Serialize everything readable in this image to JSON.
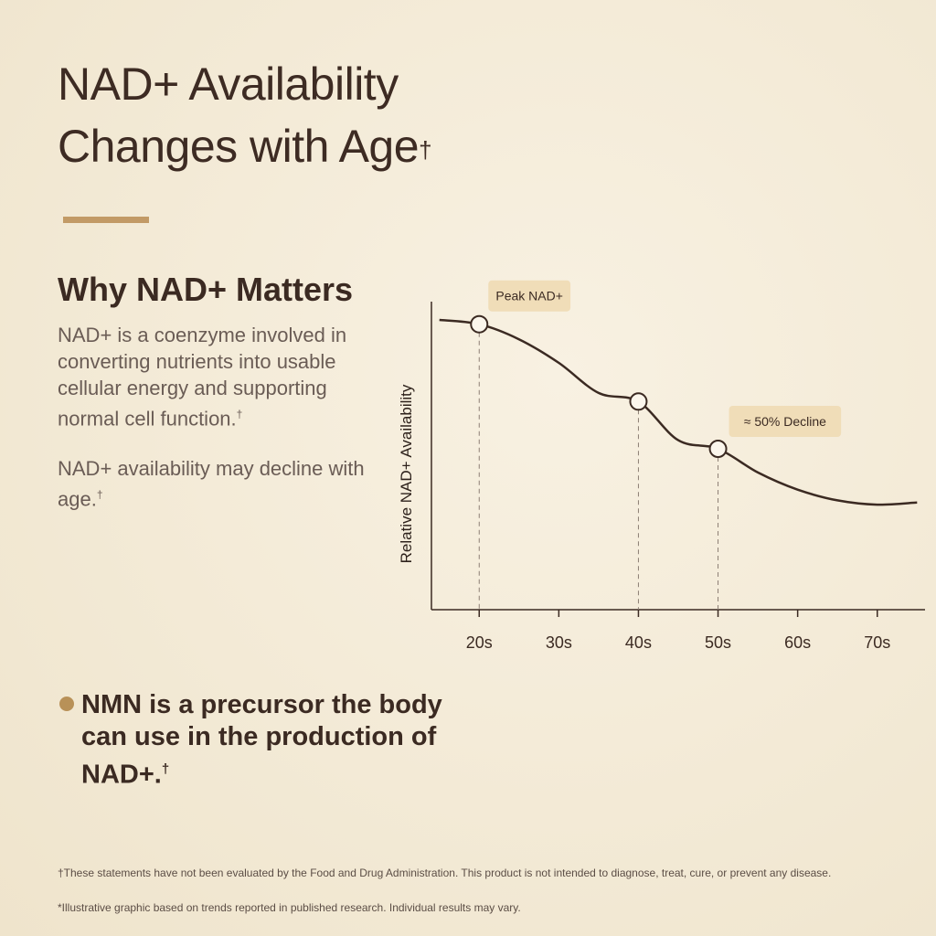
{
  "header": {
    "title_line1": "NAD+ Availability",
    "title_line2": "Changes with Age",
    "title_mark": "†"
  },
  "info": {
    "heading": "Why NAD+ Matters",
    "para1": "NAD+ is a coenzyme involved in converting nutrients into usable cellular energy and supporting normal cell function.",
    "para1_mark": "†",
    "para2": "NAD+ availability may decline with age.",
    "para2_mark": "†"
  },
  "callout": {
    "text": "NMN is a precursor the body can use in the production of NAD+.",
    "mark": "†"
  },
  "footnotes": {
    "fda": "†These statements have not been evaluated by the Food and Drug Administration. This product is not intended to diagnose, treat, cure, or prevent any disease.",
    "illustrative": "*Illustrative graphic based on trends reported in published research. Individual results may vary."
  },
  "colors": {
    "line": "#3b2a22",
    "accent": "#c29a66",
    "annotation_bg": "#f0ddb8"
  },
  "chart_data": {
    "type": "line",
    "title": "",
    "xlabel": "",
    "ylabel": "Relative NAD+ Availability",
    "categories": [
      "20s",
      "30s",
      "40s",
      "50s",
      "60s",
      "70s"
    ],
    "x_range": [
      14,
      76
    ],
    "y_range": [
      0,
      100
    ],
    "curve": [
      {
        "x": 15,
        "y": 100
      },
      {
        "x": 20,
        "y": 98
      },
      {
        "x": 25,
        "y": 91
      },
      {
        "x": 30,
        "y": 80
      },
      {
        "x": 35,
        "y": 66
      },
      {
        "x": 40,
        "y": 62
      },
      {
        "x": 45,
        "y": 44
      },
      {
        "x": 50,
        "y": 40
      },
      {
        "x": 55,
        "y": 29
      },
      {
        "x": 60,
        "y": 21
      },
      {
        "x": 65,
        "y": 16
      },
      {
        "x": 70,
        "y": 14
      },
      {
        "x": 75,
        "y": 15
      }
    ],
    "markers": [
      {
        "x": 20,
        "y": 98
      },
      {
        "x": 40,
        "y": 62
      },
      {
        "x": 50,
        "y": 40
      }
    ],
    "annotations": [
      {
        "text": "Peak NAD+",
        "x": 20,
        "y": 98
      },
      {
        "text": "≈ 50% Decline",
        "x": 50,
        "y": 40
      }
    ],
    "grid": false,
    "legend": "none"
  }
}
